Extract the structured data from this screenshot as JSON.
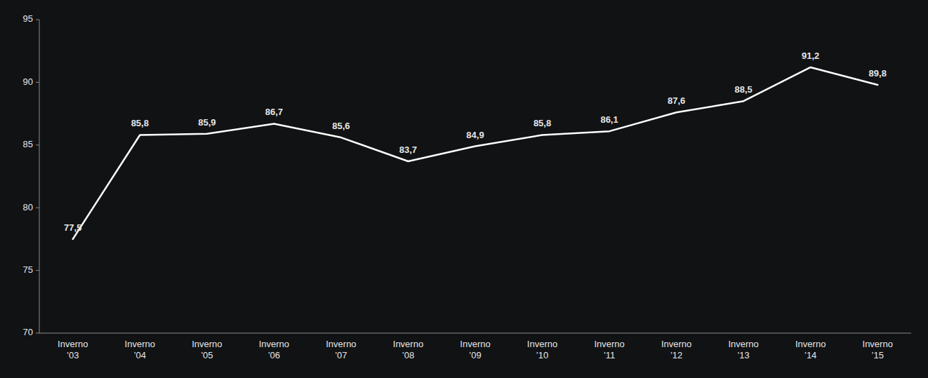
{
  "chart_data": {
    "type": "line",
    "categories": [
      "Inverno\n’03",
      "Inverno\n’04",
      "Inverno\n’05",
      "Inverno\n’06",
      "Inverno\n’07",
      "Inverno\n’08",
      "Inverno\n’09",
      "Inverno\n’10",
      "Inverno\n’11",
      "Inverno\n’12",
      "Inverno\n’13",
      "Inverno\n’14",
      "Inverno\n’15"
    ],
    "values": [
      77.5,
      85.8,
      85.9,
      86.7,
      85.6,
      83.7,
      84.9,
      85.8,
      86.1,
      87.6,
      88.5,
      91.2,
      89.8
    ],
    "value_labels": [
      "77,5",
      "85,8",
      "85,9",
      "86,7",
      "85,6",
      "83,7",
      "84,9",
      "85,8",
      "86,1",
      "87,6",
      "88,5",
      "91,2",
      "89,8"
    ],
    "data_labels": true,
    "color": "#ffffff",
    "ylim": [
      70,
      95
    ],
    "yticks": [
      70,
      75,
      80,
      85,
      90,
      95
    ],
    "grid": false
  }
}
